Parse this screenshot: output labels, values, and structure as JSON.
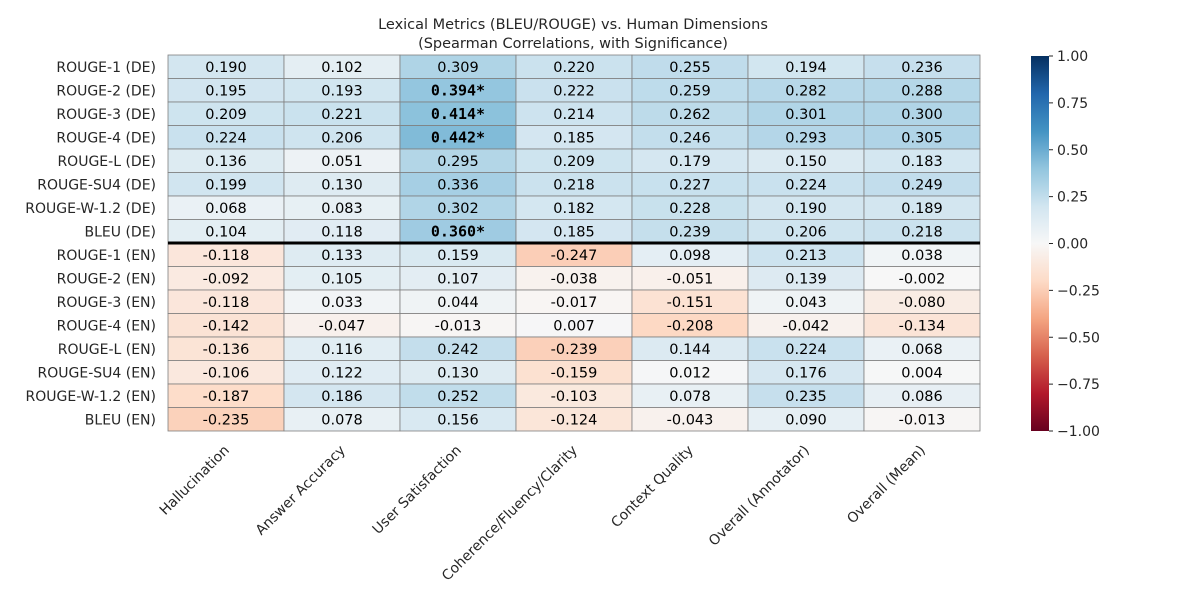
{
  "chart_data": {
    "type": "heatmap",
    "title": "Lexical Metrics (BLEU/ROUGE) vs. Human Dimensions",
    "subtitle": "(Spearman Correlations, with Significance)",
    "colormap": "RdBu",
    "vmin": -1.0,
    "vmax": 1.0,
    "separator_after_row": 8,
    "rows": [
      "ROUGE-1 (DE)",
      "ROUGE-2 (DE)",
      "ROUGE-3 (DE)",
      "ROUGE-4 (DE)",
      "ROUGE-L (DE)",
      "ROUGE-SU4 (DE)",
      "ROUGE-W-1.2 (DE)",
      "BLEU (DE)",
      "ROUGE-1 (EN)",
      "ROUGE-2 (EN)",
      "ROUGE-3 (EN)",
      "ROUGE-4 (EN)",
      "ROUGE-L (EN)",
      "ROUGE-SU4 (EN)",
      "ROUGE-W-1.2 (EN)",
      "BLEU (EN)"
    ],
    "columns": [
      "Hallucination",
      "Answer Accuracy",
      "User Satisfaction",
      "Coherence/Fluency/Clarity",
      "Context Quality",
      "Overall (Annotator)",
      "Overall (Mean)"
    ],
    "values": [
      [
        0.19,
        0.102,
        0.309,
        0.22,
        0.255,
        0.194,
        0.236
      ],
      [
        0.195,
        0.193,
        0.394,
        0.222,
        0.259,
        0.282,
        0.288
      ],
      [
        0.209,
        0.221,
        0.414,
        0.214,
        0.262,
        0.301,
        0.3
      ],
      [
        0.224,
        0.206,
        0.442,
        0.185,
        0.246,
        0.293,
        0.305
      ],
      [
        0.136,
        0.051,
        0.295,
        0.209,
        0.179,
        0.15,
        0.183
      ],
      [
        0.199,
        0.13,
        0.336,
        0.218,
        0.227,
        0.224,
        0.249
      ],
      [
        0.068,
        0.083,
        0.302,
        0.182,
        0.228,
        0.19,
        0.189
      ],
      [
        0.104,
        0.118,
        0.36,
        0.185,
        0.239,
        0.206,
        0.218
      ],
      [
        -0.118,
        0.133,
        0.159,
        -0.247,
        0.098,
        0.213,
        0.038
      ],
      [
        -0.092,
        0.105,
        0.107,
        -0.038,
        -0.051,
        0.139,
        -0.002
      ],
      [
        -0.118,
        0.033,
        0.044,
        -0.017,
        -0.151,
        0.043,
        -0.08
      ],
      [
        -0.142,
        -0.047,
        -0.013,
        0.007,
        -0.208,
        -0.042,
        -0.134
      ],
      [
        -0.136,
        0.116,
        0.242,
        -0.239,
        0.144,
        0.224,
        0.068
      ],
      [
        -0.106,
        0.122,
        0.13,
        -0.159,
        0.012,
        0.176,
        0.004
      ],
      [
        -0.187,
        0.186,
        0.252,
        -0.103,
        0.078,
        0.235,
        0.086
      ],
      [
        -0.235,
        0.078,
        0.156,
        -0.124,
        -0.043,
        0.09,
        -0.013
      ]
    ],
    "cell_labels": [
      [
        "0.190",
        "0.102",
        "0.309",
        "0.220",
        "0.255",
        "0.194",
        "0.236"
      ],
      [
        "0.195",
        "0.193",
        "0.394*",
        "0.222",
        "0.259",
        "0.282",
        "0.288"
      ],
      [
        "0.209",
        "0.221",
        "0.414*",
        "0.214",
        "0.262",
        "0.301",
        "0.300"
      ],
      [
        "0.224",
        "0.206",
        "0.442*",
        "0.185",
        "0.246",
        "0.293",
        "0.305"
      ],
      [
        "0.136",
        "0.051",
        "0.295",
        "0.209",
        "0.179",
        "0.150",
        "0.183"
      ],
      [
        "0.199",
        "0.130",
        "0.336",
        "0.218",
        "0.227",
        "0.224",
        "0.249"
      ],
      [
        "0.068",
        "0.083",
        "0.302",
        "0.182",
        "0.228",
        "0.190",
        "0.189"
      ],
      [
        "0.104",
        "0.118",
        "0.360*",
        "0.185",
        "0.239",
        "0.206",
        "0.218"
      ],
      [
        "-0.118",
        "0.133",
        "0.159",
        "-0.247",
        "0.098",
        "0.213",
        "0.038"
      ],
      [
        "-0.092",
        "0.105",
        "0.107",
        "-0.038",
        "-0.051",
        "0.139",
        "-0.002"
      ],
      [
        "-0.118",
        "0.033",
        "0.044",
        "-0.017",
        "-0.151",
        "0.043",
        "-0.080"
      ],
      [
        "-0.142",
        "-0.047",
        "-0.013",
        "0.007",
        "-0.208",
        "-0.042",
        "-0.134"
      ],
      [
        "-0.136",
        "0.116",
        "0.242",
        "-0.239",
        "0.144",
        "0.224",
        "0.068"
      ],
      [
        "-0.106",
        "0.122",
        "0.130",
        "-0.159",
        "0.012",
        "0.176",
        "0.004"
      ],
      [
        "-0.187",
        "0.186",
        "0.252",
        "-0.103",
        "0.078",
        "0.235",
        "0.086"
      ],
      [
        "-0.235",
        "0.078",
        "0.156",
        "-0.124",
        "-0.043",
        "0.090",
        "-0.013"
      ]
    ],
    "colorbar_ticks": [
      "1.00",
      "0.75",
      "0.50",
      "0.25",
      "0.00",
      "−0.25",
      "−0.50",
      "−0.75",
      "−1.00"
    ]
  }
}
